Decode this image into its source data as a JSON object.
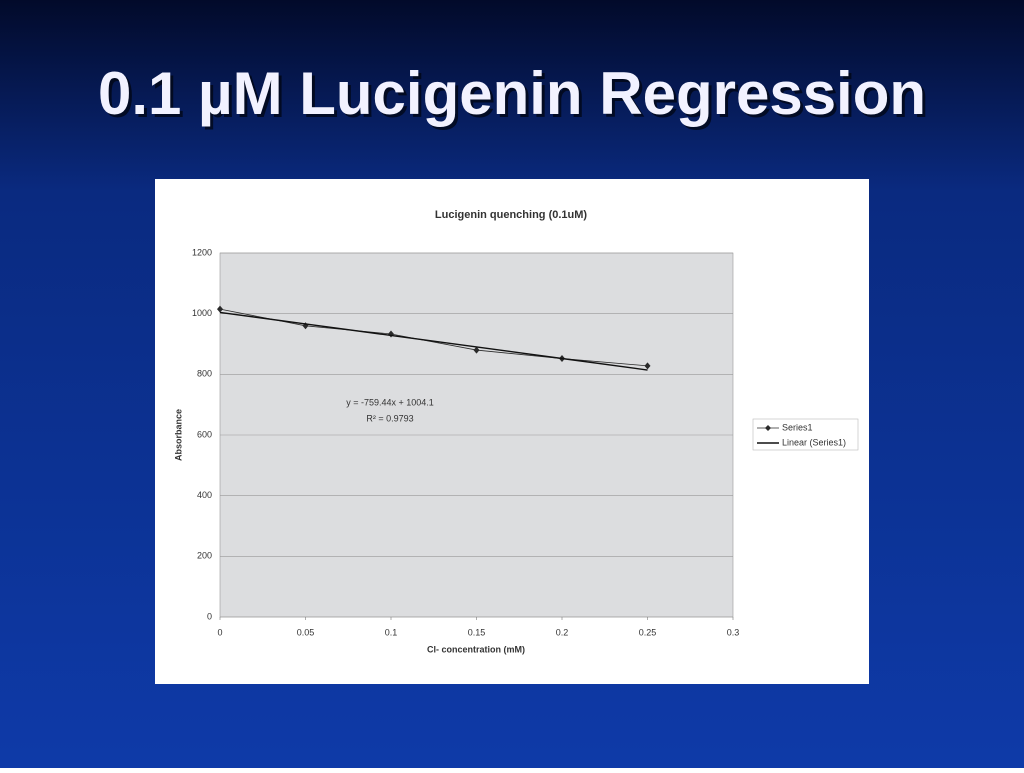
{
  "slide_title": "0.1 µM Lucigenin Regression",
  "chart_data": {
    "type": "line",
    "title": "Lucigenin quenching (0.1uM)",
    "x_label": "Cl- concentration (mM)",
    "y_label": "Absorbance",
    "x": [
      0,
      0.05,
      0.1,
      0.15,
      0.2,
      0.25
    ],
    "series": [
      {
        "name": "Series1",
        "color": "#2a2a2a",
        "marker": "diamond",
        "values": [
          1015,
          960,
          933,
          880,
          852,
          828
        ]
      },
      {
        "name": "Linear (Series1)",
        "color": "#111111",
        "values": [
          1004.1,
          966.1,
          928.2,
          890.2,
          852.2,
          814.2
        ]
      }
    ],
    "annotations": [
      "y = -759.44x + 1004.1",
      "R² = 0.9793"
    ],
    "xlim": [
      0,
      0.3
    ],
    "xticks": [
      0,
      0.05,
      0.1,
      0.15,
      0.2,
      0.25,
      0.3
    ],
    "ylim": [
      0,
      1200
    ],
    "yticks": [
      0,
      200,
      400,
      600,
      800,
      1000,
      1200
    ],
    "grid": true,
    "legend": "right"
  }
}
